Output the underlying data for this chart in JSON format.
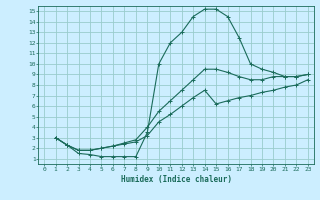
{
  "xlabel": "Humidex (Indice chaleur)",
  "bg_color": "#cceeff",
  "grid_color": "#99cccc",
  "line_color": "#1a6b5a",
  "xlim": [
    -0.5,
    23.5
  ],
  "ylim": [
    0.5,
    15.5
  ],
  "xticks": [
    0,
    1,
    2,
    3,
    4,
    5,
    6,
    7,
    8,
    9,
    10,
    11,
    12,
    13,
    14,
    15,
    16,
    17,
    18,
    19,
    20,
    21,
    22,
    23
  ],
  "yticks": [
    1,
    2,
    3,
    4,
    5,
    6,
    7,
    8,
    9,
    10,
    11,
    12,
    13,
    14,
    15
  ],
  "curve1_x": [
    1,
    2,
    3,
    4,
    5,
    6,
    7,
    8,
    9,
    10,
    11,
    12,
    13,
    14,
    15,
    16,
    17,
    18,
    19,
    20,
    21,
    22,
    23
  ],
  "curve1_y": [
    3.0,
    2.3,
    1.5,
    1.4,
    1.2,
    1.2,
    1.2,
    1.2,
    3.5,
    10.0,
    12.0,
    13.0,
    14.5,
    15.2,
    15.2,
    14.5,
    12.5,
    10.0,
    9.5,
    9.2,
    8.8,
    8.8,
    9.0
  ],
  "curve2_x": [
    1,
    2,
    3,
    4,
    5,
    6,
    7,
    8,
    9,
    10,
    11,
    12,
    13,
    14,
    15,
    16,
    17,
    18,
    19,
    20,
    21,
    22,
    23
  ],
  "curve2_y": [
    3.0,
    2.3,
    1.8,
    1.8,
    2.0,
    2.2,
    2.5,
    2.8,
    4.0,
    5.5,
    6.5,
    7.5,
    8.5,
    9.5,
    9.5,
    9.2,
    8.8,
    8.5,
    8.5,
    8.8,
    8.8,
    8.8,
    9.0
  ],
  "curve3_x": [
    1,
    2,
    3,
    4,
    5,
    6,
    7,
    8,
    9,
    10,
    11,
    12,
    13,
    14,
    15,
    16,
    17,
    18,
    19,
    20,
    21,
    22,
    23
  ],
  "curve3_y": [
    3.0,
    2.3,
    1.8,
    1.8,
    2.0,
    2.2,
    2.4,
    2.6,
    3.2,
    4.5,
    5.2,
    6.0,
    6.8,
    7.5,
    6.2,
    6.5,
    6.8,
    7.0,
    7.3,
    7.5,
    7.8,
    8.0,
    8.5
  ]
}
